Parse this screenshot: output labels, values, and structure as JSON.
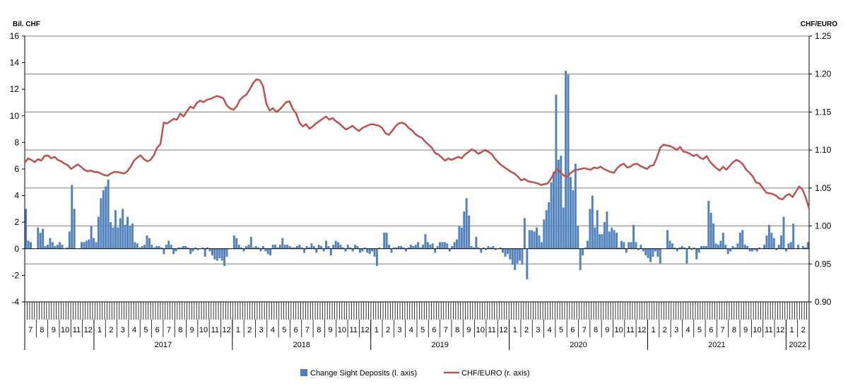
{
  "chart_data": {
    "type": "bar",
    "left_axis_title": "Bil. CHF",
    "right_axis_title": "CHF/EURO",
    "left_ylim": [
      -4,
      16
    ],
    "left_ticks": [
      "16",
      "14",
      "12",
      "10",
      "8",
      "6",
      "4",
      "2",
      "0",
      "-2",
      "-4"
    ],
    "right_ylim": [
      0.9,
      1.25
    ],
    "right_ticks": [
      "1.25",
      "1.20",
      "1.15",
      "1.10",
      "1.05",
      "1.00",
      "0.95",
      "0.90"
    ],
    "grid": "horizontal",
    "legend_position": "bottom",
    "colors": {
      "bars": "#4f81bd",
      "line": "#c0504d"
    },
    "series": [
      {
        "name": "Change Sight Deposits (l. axis)",
        "axis": "left",
        "kind": "bar",
        "values": [
          3.0,
          0.6,
          0.5,
          0,
          0,
          1.6,
          1.2,
          1.5,
          0.2,
          0.3,
          0.8,
          0.5,
          0.2,
          0.3,
          0.5,
          0.3,
          0,
          0.1,
          1.3,
          4.8,
          3.0,
          0,
          0,
          0.5,
          0.5,
          0.6,
          0.7,
          1.7,
          0.8,
          0.5,
          2.4,
          3.8,
          4.4,
          4.7,
          5.2,
          2.0,
          1.6,
          2.9,
          1.6,
          2.3,
          3.0,
          1.8,
          2.4,
          1.7,
          1.9,
          0.5,
          0.4,
          0.1,
          0.2,
          0.3,
          1.0,
          0.8,
          0.3,
          0.1,
          0.2,
          0.2,
          0.1,
          -0.4,
          0.3,
          0.6,
          0.3,
          -0.4,
          -0.2,
          0.1,
          0.1,
          0.2,
          0.2,
          0.1,
          -0.4,
          -0.2,
          0.1,
          -0.1,
          0,
          0.1,
          -0.6,
          0.1,
          -0.2,
          -0.5,
          -0.8,
          -0.9,
          -0.7,
          -0.9,
          -1.3,
          -0.6,
          0,
          0,
          1.0,
          0.8,
          0.3,
          0.1,
          -0.2,
          0.2,
          0.3,
          0.9,
          0.1,
          0.2,
          0.1,
          -0.2,
          0.2,
          -0.2,
          -0.4,
          -0.5,
          0.3,
          0.3,
          0.1,
          0.3,
          0.8,
          0.3,
          0.3,
          0.2,
          0.1,
          0.1,
          0.2,
          0.3,
          0.1,
          -0.3,
          0.2,
          0.1,
          0.4,
          0.2,
          -0.3,
          0.3,
          0.2,
          -0.2,
          0.6,
          0.2,
          -0.5,
          0.3,
          0.6,
          0.5,
          0.3,
          0.1,
          -0.2,
          0.3,
          0.1,
          -0.2,
          0.3,
          0.2,
          -0.3,
          -0.2,
          0.1,
          -0.3,
          -0.4,
          -0.2,
          -0.6,
          -1.3,
          0.1,
          0,
          1.2,
          1.2,
          0.3,
          -0.3,
          0.1,
          0.1,
          0.2,
          0.2,
          0.1,
          -0.2,
          0.1,
          0.3,
          0.2,
          0.3,
          0.5,
          0.1,
          0.3,
          1.1,
          0.5,
          0.3,
          0.4,
          -0.3,
          0.2,
          0.5,
          0.5,
          0.5,
          0.4,
          -0.2,
          0.2,
          0.5,
          0.7,
          1.7,
          1.6,
          2.8,
          3.8,
          2.5,
          0.2,
          0.1,
          0.9,
          0.1,
          -0.3,
          0.1,
          -0.1,
          0.2,
          0.1,
          0.2,
          -0.1,
          0,
          0.1,
          -0.3,
          -0.6,
          -0.4,
          -0.8,
          -1.2,
          -1.6,
          -1.1,
          -0.9,
          -1.2,
          2.3,
          -2.3,
          1.4,
          1.4,
          1.3,
          1.6,
          1.0,
          0.5,
          2.2,
          2.9,
          3.5,
          5.0,
          5.8,
          11.6,
          6.7,
          7.0,
          3.1,
          13.4,
          13.1,
          5.4,
          4.4,
          6.4,
          1.7,
          -1.6,
          -0.5,
          0.1,
          0.6,
          3.0,
          4.0,
          1.6,
          2.9,
          1.1,
          1.1,
          2.0,
          2.8,
          1.3,
          1.6,
          1.4,
          1.2,
          0.1,
          0.6,
          0.5,
          -0.3,
          0.5,
          0.5,
          1.8,
          0.5,
          -0.1,
          0.3,
          -0.2,
          -0.5,
          -0.7,
          -1.0,
          -0.6,
          -0.2,
          -0.6,
          -1.1,
          0,
          0,
          1.4,
          0.6,
          0.4,
          0.1,
          -0.2,
          0.1,
          0.2,
          0.1,
          -1.1,
          0.2,
          -0.1,
          0.1,
          -0.8,
          -0.3,
          0.2,
          0.2,
          0.2,
          3.6,
          2.7,
          1.9,
          0.4,
          0.3,
          0.6,
          1.2,
          0.3,
          -0.4,
          -0.2,
          0.2,
          0.1,
          0.4,
          1.2,
          1.4,
          0.3,
          0.2,
          -0.2,
          -0.2,
          -0.1,
          -0.2,
          0.1,
          0,
          0.3,
          1.0,
          1.8,
          1.2,
          0.8,
          -0.1,
          0.3,
          1.0,
          2.4,
          -0.2,
          0.4,
          0.5,
          1.9,
          0,
          0.3,
          0,
          0.2,
          0.1,
          0.5
        ]
      },
      {
        "name": "CHF/EURO (r. axis)",
        "axis": "right",
        "kind": "line",
        "values": [
          1.083,
          1.089,
          1.087,
          1.084,
          1.088,
          1.086,
          1.092,
          1.093,
          1.089,
          1.091,
          1.087,
          1.085,
          1.082,
          1.08,
          1.075,
          1.078,
          1.081,
          1.078,
          1.074,
          1.072,
          1.073,
          1.071,
          1.071,
          1.069,
          1.067,
          1.066,
          1.069,
          1.071,
          1.071,
          1.07,
          1.069,
          1.072,
          1.078,
          1.086,
          1.09,
          1.093,
          1.088,
          1.085,
          1.087,
          1.093,
          1.103,
          1.108,
          1.136,
          1.135,
          1.138,
          1.141,
          1.14,
          1.148,
          1.144,
          1.151,
          1.157,
          1.155,
          1.162,
          1.165,
          1.163,
          1.166,
          1.167,
          1.169,
          1.171,
          1.17,
          1.168,
          1.159,
          1.155,
          1.153,
          1.157,
          1.166,
          1.17,
          1.173,
          1.18,
          1.188,
          1.193,
          1.192,
          1.184,
          1.161,
          1.152,
          1.155,
          1.15,
          1.153,
          1.158,
          1.163,
          1.164,
          1.154,
          1.148,
          1.136,
          1.131,
          1.134,
          1.128,
          1.131,
          1.135,
          1.138,
          1.141,
          1.144,
          1.14,
          1.142,
          1.138,
          1.135,
          1.131,
          1.127,
          1.129,
          1.132,
          1.128,
          1.125,
          1.129,
          1.131,
          1.133,
          1.134,
          1.133,
          1.132,
          1.129,
          1.122,
          1.12,
          1.125,
          1.131,
          1.135,
          1.136,
          1.134,
          1.129,
          1.126,
          1.121,
          1.118,
          1.116,
          1.111,
          1.107,
          1.103,
          1.096,
          1.094,
          1.09,
          1.086,
          1.089,
          1.087,
          1.089,
          1.091,
          1.089,
          1.094,
          1.097,
          1.101,
          1.099,
          1.095,
          1.097,
          1.1,
          1.098,
          1.095,
          1.089,
          1.084,
          1.08,
          1.077,
          1.074,
          1.071,
          1.069,
          1.065,
          1.06,
          1.062,
          1.059,
          1.058,
          1.057,
          1.056,
          1.054,
          1.055,
          1.056,
          1.062,
          1.07,
          1.075,
          1.07,
          1.066,
          1.065,
          1.07,
          1.073,
          1.074,
          1.075,
          1.076,
          1.075,
          1.074,
          1.077,
          1.076,
          1.078,
          1.075,
          1.073,
          1.071,
          1.07,
          1.076,
          1.08,
          1.082,
          1.077,
          1.078,
          1.081,
          1.082,
          1.079,
          1.077,
          1.075,
          1.079,
          1.08,
          1.09,
          1.103,
          1.107,
          1.106,
          1.105,
          1.103,
          1.1,
          1.104,
          1.098,
          1.097,
          1.095,
          1.092,
          1.094,
          1.09,
          1.088,
          1.092,
          1.085,
          1.08,
          1.076,
          1.073,
          1.078,
          1.074,
          1.079,
          1.084,
          1.087,
          1.085,
          1.081,
          1.074,
          1.07,
          1.065,
          1.057,
          1.056,
          1.05,
          1.044,
          1.043,
          1.042,
          1.04,
          1.036,
          1.035,
          1.04,
          1.042,
          1.038,
          1.045,
          1.052,
          1.048,
          1.037,
          1.023
        ]
      }
    ],
    "months": [
      "7",
      "8",
      "9",
      "10",
      "11",
      "12",
      "1",
      "2",
      "3",
      "4",
      "5",
      "6",
      "7",
      "8",
      "9",
      "10",
      "11",
      "12",
      "1",
      "2",
      "3",
      "4",
      "5",
      "6",
      "7",
      "8",
      "9",
      "10",
      "11",
      "12",
      "1",
      "2",
      "3",
      "4",
      "5",
      "6",
      "7",
      "8",
      "9",
      "10",
      "11",
      "12",
      "1",
      "2",
      "3",
      "4",
      "5",
      "6",
      "7",
      "8",
      "9",
      "10",
      "11",
      "12",
      "1",
      "2",
      "3",
      "4",
      "5",
      "6",
      "7",
      "8",
      "9",
      "10",
      "11",
      "12",
      "1",
      "2"
    ],
    "years": [
      {
        "label": "2017",
        "start_month": 6,
        "end_month": 17
      },
      {
        "label": "2018",
        "start_month": 18,
        "end_month": 29
      },
      {
        "label": "2019",
        "start_month": 30,
        "end_month": 41
      },
      {
        "label": "2020",
        "start_month": 42,
        "end_month": 53
      },
      {
        "label": "2021",
        "start_month": 54,
        "end_month": 65
      },
      {
        "label": "2022",
        "start_month": 66,
        "end_month": 67
      }
    ]
  }
}
